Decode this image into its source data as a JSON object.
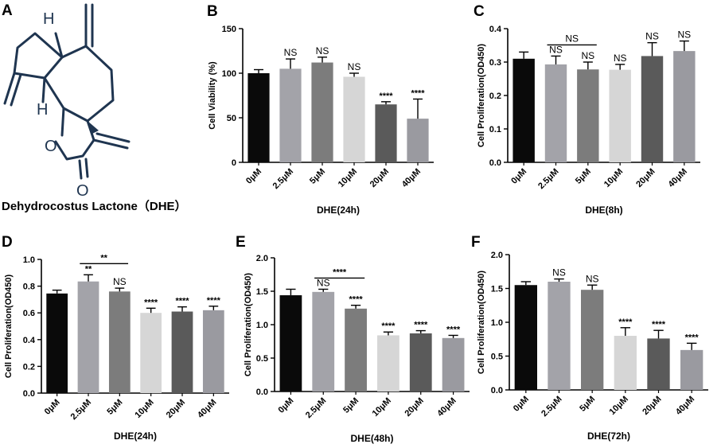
{
  "structure": {
    "letter": "A",
    "caption": "Dehydrocostus Lactone（DHE）",
    "atoms": {
      "h_top": "H",
      "h_left": "H",
      "o_ring": "O",
      "o_carbonyl": "O"
    }
  },
  "chart_data": [
    {
      "letter": "B",
      "type": "bar",
      "categories": [
        "0μM",
        "2.5μM",
        "5μM",
        "10μM",
        "20μM",
        "40μM"
      ],
      "values": [
        100,
        105,
        112,
        96,
        65,
        49
      ],
      "errors": [
        4,
        11,
        6,
        4,
        3,
        22
      ],
      "annotations": [
        "",
        "NS",
        "NS",
        "NS",
        "****",
        "****"
      ],
      "bracket": null,
      "ylim": [
        0,
        150
      ],
      "yticks": [
        "0",
        "50",
        "100",
        "150"
      ],
      "ylabel": "Cell Viability (%)",
      "xlabel": "DHE(24h)"
    },
    {
      "letter": "C",
      "type": "bar",
      "categories": [
        "0μM",
        "2.5μM",
        "5μM",
        "10μM",
        "20μM",
        "40μM"
      ],
      "values": [
        0.31,
        0.293,
        0.278,
        0.277,
        0.318,
        0.333
      ],
      "errors": [
        0.02,
        0.025,
        0.022,
        0.016,
        0.04,
        0.03
      ],
      "annotations": [
        "",
        "NS",
        "NS",
        "NS",
        "NS",
        "NS"
      ],
      "bracket": {
        "from": 1,
        "to": 2,
        "label": "NS"
      },
      "ylim": [
        0,
        0.4
      ],
      "yticks": [
        "0.0",
        "0.1",
        "0.2",
        "0.3",
        "0.4"
      ],
      "ylabel": "Cell Proliferation(OD450)",
      "xlabel": "DHE(8h)"
    },
    {
      "letter": "D",
      "type": "bar",
      "categories": [
        "0μM",
        "2.5μM",
        "5μM",
        "10μM",
        "20μM",
        "40μM"
      ],
      "values": [
        0.745,
        0.835,
        0.76,
        0.6,
        0.61,
        0.62
      ],
      "errors": [
        0.025,
        0.05,
        0.025,
        0.035,
        0.035,
        0.03
      ],
      "annotations": [
        "",
        "**",
        "NS",
        "****",
        "****",
        "****"
      ],
      "bracket": {
        "from": 1,
        "to": 2,
        "label": "**"
      },
      "ylim": [
        0,
        1.0
      ],
      "yticks": [
        "0.0",
        "0.2",
        "0.4",
        "0.6",
        "0.8",
        "1.0"
      ],
      "ylabel": "Cell Proliferation(OD450)",
      "xlabel": "DHE(24h)"
    },
    {
      "letter": "E",
      "type": "bar",
      "categories": [
        "0μM",
        "2.5μM",
        "5μM",
        "10μM",
        "20μM",
        "40μM"
      ],
      "values": [
        1.44,
        1.49,
        1.24,
        0.84,
        0.87,
        0.8
      ],
      "errors": [
        0.09,
        0.04,
        0.05,
        0.05,
        0.04,
        0.04
      ],
      "annotations": [
        "",
        "NS",
        "****",
        "****",
        "****",
        "****"
      ],
      "bracket": {
        "from": 1,
        "to": 2,
        "label": "****"
      },
      "ylim": [
        0,
        2.0
      ],
      "yticks": [
        "0.0",
        "0.5",
        "1.0",
        "1.5",
        "2.0"
      ],
      "ylabel": "Cell Proliferation(OD450)",
      "xlabel": "DHE(48h)"
    },
    {
      "letter": "F",
      "type": "bar",
      "categories": [
        "0μM",
        "2.5μM",
        "5μM",
        "10μM",
        "20μM",
        "40μM"
      ],
      "values": [
        1.55,
        1.6,
        1.48,
        0.8,
        0.76,
        0.59
      ],
      "errors": [
        0.05,
        0.04,
        0.07,
        0.12,
        0.12,
        0.1
      ],
      "annotations": [
        "",
        "NS",
        "NS",
        "****",
        "****",
        "****"
      ],
      "bracket": null,
      "ylim": [
        0,
        2.0
      ],
      "yticks": [
        "0.0",
        "0.5",
        "1.0",
        "1.5",
        "2.0"
      ],
      "ylabel": "Cell Proliferation(OD450)",
      "xlabel": "DHE(72h)"
    }
  ],
  "colors": {
    "bars": [
      "#0a0a0a",
      "#a3a3a9",
      "#7c7c7c",
      "#d6d6d6",
      "#5a5a5a",
      "#9a9aa0"
    ],
    "axis": "#000000"
  }
}
